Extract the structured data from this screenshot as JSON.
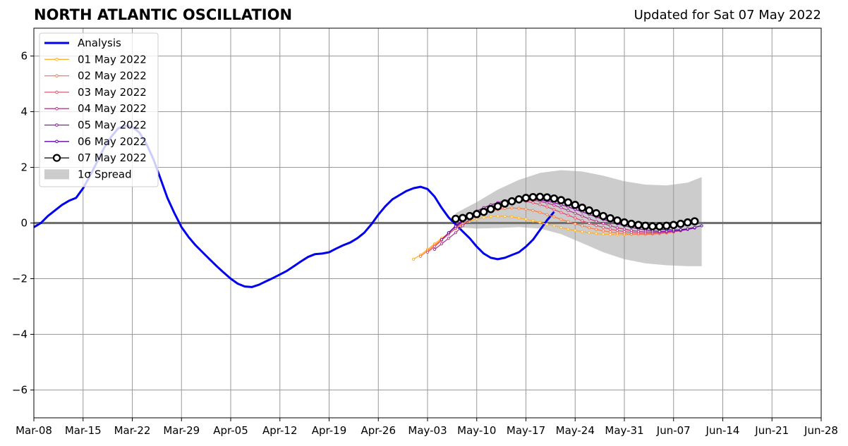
{
  "header": {
    "title": "NORTH ATLANTIC OSCILLATION",
    "updated": "Updated for Sat 07 May 2022"
  },
  "colors": {
    "analysis": "#0000ee",
    "spread": "#cccccc",
    "grid": "#999999",
    "zero_line": "#555555",
    "forecasts": [
      "#fdb22f",
      "#f3804f",
      "#d95872",
      "#b23b8d",
      "#8b17a5",
      "#5e04a8",
      "#000000"
    ]
  },
  "chart_data": {
    "type": "line",
    "title": "NORTH ATLANTIC OSCILLATION",
    "xlabel": "",
    "ylabel": "",
    "xlim": [
      "2022-03-08",
      "2022-06-28"
    ],
    "ylim": [
      -7,
      7
    ],
    "grid": true,
    "legend_position": "top-left",
    "x_ticks": [
      "Mar-08",
      "Mar-15",
      "Mar-22",
      "Mar-29",
      "Apr-05",
      "Apr-12",
      "Apr-19",
      "Apr-26",
      "May-03",
      "May-10",
      "May-17",
      "May-24",
      "May-31",
      "Jun-07",
      "Jun-14",
      "Jun-21",
      "Jun-28"
    ],
    "y_ticks": [
      "6",
      "4",
      "2",
      "0",
      "−2",
      "−4",
      "−6"
    ],
    "y_tick_values": [
      6,
      4,
      2,
      0,
      -2,
      -4,
      -6
    ],
    "analysis": {
      "name": "Analysis",
      "start": "2022-03-08",
      "values": [
        -0.15,
        0.0,
        0.25,
        0.45,
        0.65,
        0.8,
        0.9,
        1.25,
        1.7,
        2.2,
        2.7,
        3.1,
        3.4,
        3.5,
        3.45,
        3.25,
        2.85,
        2.3,
        1.6,
        0.9,
        0.35,
        -0.15,
        -0.5,
        -0.8,
        -1.05,
        -1.3,
        -1.55,
        -1.78,
        -2.0,
        -2.18,
        -2.28,
        -2.3,
        -2.22,
        -2.1,
        -1.98,
        -1.85,
        -1.72,
        -1.55,
        -1.38,
        -1.22,
        -1.12,
        -1.1,
        -1.05,
        -0.92,
        -0.8,
        -0.7,
        -0.55,
        -0.35,
        -0.05,
        0.3,
        0.6,
        0.85,
        1.0,
        1.15,
        1.25,
        1.3,
        1.22,
        0.95,
        0.55,
        0.2,
        -0.05,
        -0.3,
        -0.55,
        -0.85,
        -1.1,
        -1.25,
        -1.3,
        -1.25,
        -1.15,
        -1.05,
        -0.85,
        -0.6,
        -0.25,
        0.1,
        0.4
      ]
    },
    "forecasts": [
      {
        "name": "01 May 2022",
        "start": "2022-05-01",
        "values": [
          -1.3,
          -1.15,
          -0.95,
          -0.75,
          -0.55,
          -0.38,
          -0.2,
          -0.05,
          0.07,
          0.15,
          0.2,
          0.23,
          0.25,
          0.24,
          0.22,
          0.18,
          0.14,
          0.08,
          0.02,
          -0.05,
          -0.1,
          -0.16,
          -0.22,
          -0.27,
          -0.31,
          -0.35,
          -0.38,
          -0.4,
          -0.41,
          -0.42,
          -0.42,
          -0.41,
          -0.4,
          -0.38,
          -0.36,
          -0.34,
          -0.32
        ]
      },
      {
        "name": "02 May 2022",
        "start": "2022-05-02",
        "values": [
          -1.2,
          -1.0,
          -0.8,
          -0.6,
          -0.4,
          -0.2,
          -0.02,
          0.12,
          0.25,
          0.35,
          0.43,
          0.48,
          0.52,
          0.54,
          0.53,
          0.5,
          0.45,
          0.38,
          0.3,
          0.22,
          0.13,
          0.05,
          -0.03,
          -0.1,
          -0.17,
          -0.23,
          -0.28,
          -0.32,
          -0.36,
          -0.38,
          -0.4,
          -0.41,
          -0.41,
          -0.4,
          -0.38,
          -0.36,
          -0.33
        ]
      },
      {
        "name": "03 May 2022",
        "start": "2022-05-03",
        "values": [
          -1.05,
          -0.85,
          -0.62,
          -0.4,
          -0.18,
          0.05,
          0.25,
          0.42,
          0.55,
          0.65,
          0.72,
          0.77,
          0.8,
          0.8,
          0.78,
          0.73,
          0.66,
          0.58,
          0.48,
          0.38,
          0.28,
          0.18,
          0.08,
          -0.01,
          -0.09,
          -0.16,
          -0.22,
          -0.27,
          -0.31,
          -0.34,
          -0.36,
          -0.37,
          -0.37,
          -0.36,
          -0.34,
          -0.31,
          -0.28
        ]
      },
      {
        "name": "04 May 2022",
        "start": "2022-05-04",
        "values": [
          -0.95,
          -0.75,
          -0.55,
          -0.35,
          -0.1,
          0.12,
          0.3,
          0.45,
          0.58,
          0.68,
          0.75,
          0.8,
          0.83,
          0.84,
          0.82,
          0.78,
          0.72,
          0.64,
          0.55,
          0.45,
          0.35,
          0.25,
          0.15,
          0.06,
          -0.02,
          -0.1,
          -0.17,
          -0.22,
          -0.27,
          -0.3,
          -0.32,
          -0.33,
          -0.33,
          -0.32,
          -0.3,
          -0.27,
          -0.23
        ]
      },
      {
        "name": "05 May 2022",
        "start": "2022-05-05",
        "values": [
          -0.6,
          -0.35,
          -0.1,
          0.1,
          0.28,
          0.43,
          0.55,
          0.65,
          0.73,
          0.8,
          0.84,
          0.86,
          0.87,
          0.86,
          0.83,
          0.79,
          0.73,
          0.66,
          0.58,
          0.49,
          0.4,
          0.31,
          0.22,
          0.13,
          0.05,
          -0.03,
          -0.1,
          -0.16,
          -0.21,
          -0.25,
          -0.28,
          -0.3,
          -0.3,
          -0.29,
          -0.27,
          -0.23,
          -0.18
        ]
      },
      {
        "name": "06 May 2022",
        "start": "2022-05-06",
        "values": [
          -0.35,
          -0.12,
          0.05,
          0.2,
          0.33,
          0.45,
          0.55,
          0.64,
          0.72,
          0.78,
          0.83,
          0.86,
          0.88,
          0.88,
          0.87,
          0.84,
          0.79,
          0.73,
          0.66,
          0.58,
          0.49,
          0.4,
          0.31,
          0.22,
          0.14,
          0.06,
          -0.01,
          -0.08,
          -0.14,
          -0.18,
          -0.22,
          -0.24,
          -0.25,
          -0.24,
          -0.21,
          -0.16,
          -0.1
        ]
      },
      {
        "name": "07 May 2022",
        "start": "2022-05-07",
        "values": [
          0.15,
          0.18,
          0.25,
          0.32,
          0.4,
          0.5,
          0.6,
          0.7,
          0.78,
          0.85,
          0.9,
          0.93,
          0.94,
          0.92,
          0.88,
          0.82,
          0.74,
          0.65,
          0.55,
          0.45,
          0.35,
          0.25,
          0.17,
          0.09,
          0.02,
          -0.03,
          -0.07,
          -0.1,
          -0.12,
          -0.12,
          -0.1,
          -0.07,
          -0.03,
          0.02,
          0.06
        ]
      }
    ],
    "spread": {
      "name": "1σ Spread",
      "dates": [
        "2022-05-07",
        "2022-05-10",
        "2022-05-13",
        "2022-05-16",
        "2022-05-19",
        "2022-05-22",
        "2022-05-25",
        "2022-05-28",
        "2022-05-31",
        "2022-06-03",
        "2022-06-06",
        "2022-06-09",
        "2022-06-11"
      ],
      "upper": [
        0.35,
        0.75,
        1.2,
        1.55,
        1.8,
        1.9,
        1.85,
        1.7,
        1.5,
        1.38,
        1.35,
        1.45,
        1.65
      ],
      "lower": [
        -0.15,
        -0.2,
        -0.18,
        -0.15,
        -0.2,
        -0.4,
        -0.72,
        -1.05,
        -1.3,
        -1.45,
        -1.52,
        -1.55,
        -1.55
      ]
    }
  }
}
